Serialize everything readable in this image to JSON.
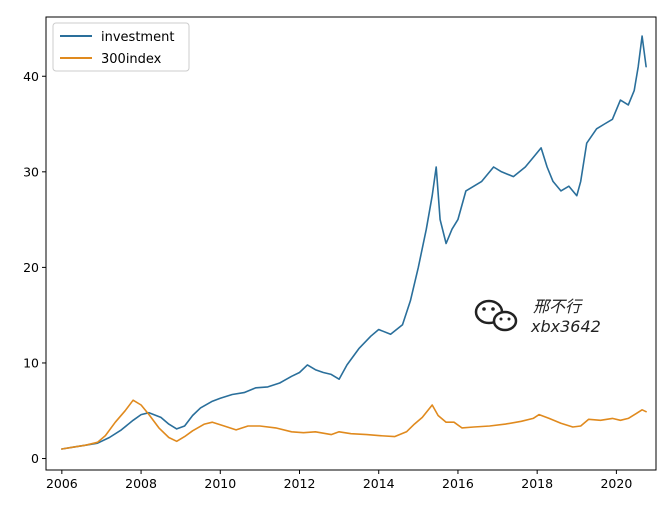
{
  "chart_data": {
    "type": "line",
    "title": "",
    "xlabel": "",
    "ylabel": "",
    "xlim": [
      2005.6,
      2021.0
    ],
    "ylim": [
      -1.2,
      46.2
    ],
    "xticks": [
      2006,
      2008,
      2010,
      2012,
      2014,
      2016,
      2018,
      2020
    ],
    "yticks": [
      0,
      10,
      20,
      30,
      40
    ],
    "grid": false,
    "legend_position": "top-left",
    "series": [
      {
        "name": "investment",
        "color": "#2a6f9b",
        "points": [
          [
            2006.0,
            1.0
          ],
          [
            2006.3,
            1.2
          ],
          [
            2006.6,
            1.4
          ],
          [
            2006.9,
            1.6
          ],
          [
            2007.2,
            2.2
          ],
          [
            2007.5,
            3.0
          ],
          [
            2007.8,
            4.0
          ],
          [
            2008.0,
            4.6
          ],
          [
            2008.2,
            4.8
          ],
          [
            2008.5,
            4.3
          ],
          [
            2008.7,
            3.6
          ],
          [
            2008.9,
            3.1
          ],
          [
            2009.1,
            3.4
          ],
          [
            2009.3,
            4.5
          ],
          [
            2009.5,
            5.3
          ],
          [
            2009.8,
            6.0
          ],
          [
            2010.0,
            6.3
          ],
          [
            2010.3,
            6.7
          ],
          [
            2010.6,
            6.9
          ],
          [
            2010.9,
            7.4
          ],
          [
            2011.2,
            7.5
          ],
          [
            2011.5,
            7.9
          ],
          [
            2011.8,
            8.6
          ],
          [
            2012.0,
            9.0
          ],
          [
            2012.2,
            9.8
          ],
          [
            2012.4,
            9.3
          ],
          [
            2012.6,
            9.0
          ],
          [
            2012.8,
            8.8
          ],
          [
            2013.0,
            8.3
          ],
          [
            2013.2,
            9.8
          ],
          [
            2013.5,
            11.5
          ],
          [
            2013.8,
            12.8
          ],
          [
            2014.0,
            13.5
          ],
          [
            2014.3,
            13.0
          ],
          [
            2014.6,
            14.0
          ],
          [
            2014.8,
            16.5
          ],
          [
            2015.0,
            20.0
          ],
          [
            2015.2,
            24.0
          ],
          [
            2015.35,
            27.5
          ],
          [
            2015.45,
            30.5
          ],
          [
            2015.55,
            25.0
          ],
          [
            2015.7,
            22.5
          ],
          [
            2015.85,
            24.0
          ],
          [
            2016.0,
            25.0
          ],
          [
            2016.2,
            28.0
          ],
          [
            2016.4,
            28.5
          ],
          [
            2016.6,
            29.0
          ],
          [
            2016.9,
            30.5
          ],
          [
            2017.1,
            30.0
          ],
          [
            2017.4,
            29.5
          ],
          [
            2017.7,
            30.5
          ],
          [
            2017.9,
            31.5
          ],
          [
            2018.1,
            32.5
          ],
          [
            2018.25,
            30.5
          ],
          [
            2018.4,
            29.0
          ],
          [
            2018.6,
            28.0
          ],
          [
            2018.8,
            28.5
          ],
          [
            2019.0,
            27.5
          ],
          [
            2019.1,
            29.0
          ],
          [
            2019.25,
            33.0
          ],
          [
            2019.5,
            34.5
          ],
          [
            2019.7,
            35.0
          ],
          [
            2019.9,
            35.5
          ],
          [
            2020.1,
            37.5
          ],
          [
            2020.3,
            37.0
          ],
          [
            2020.45,
            38.5
          ],
          [
            2020.55,
            41.0
          ],
          [
            2020.65,
            44.2
          ],
          [
            2020.75,
            41.0
          ]
        ]
      },
      {
        "name": "300index",
        "color": "#e08a1e",
        "points": [
          [
            2006.0,
            1.0
          ],
          [
            2006.3,
            1.2
          ],
          [
            2006.6,
            1.4
          ],
          [
            2006.9,
            1.7
          ],
          [
            2007.1,
            2.4
          ],
          [
            2007.35,
            3.8
          ],
          [
            2007.6,
            5.0
          ],
          [
            2007.8,
            6.1
          ],
          [
            2008.0,
            5.6
          ],
          [
            2008.2,
            4.6
          ],
          [
            2008.45,
            3.2
          ],
          [
            2008.7,
            2.2
          ],
          [
            2008.9,
            1.8
          ],
          [
            2009.1,
            2.3
          ],
          [
            2009.3,
            2.9
          ],
          [
            2009.6,
            3.6
          ],
          [
            2009.8,
            3.8
          ],
          [
            2010.1,
            3.4
          ],
          [
            2010.4,
            3.0
          ],
          [
            2010.7,
            3.4
          ],
          [
            2011.0,
            3.4
          ],
          [
            2011.4,
            3.2
          ],
          [
            2011.8,
            2.8
          ],
          [
            2012.1,
            2.7
          ],
          [
            2012.4,
            2.8
          ],
          [
            2012.8,
            2.5
          ],
          [
            2013.0,
            2.8
          ],
          [
            2013.3,
            2.6
          ],
          [
            2013.7,
            2.5
          ],
          [
            2014.0,
            2.4
          ],
          [
            2014.4,
            2.3
          ],
          [
            2014.7,
            2.8
          ],
          [
            2014.9,
            3.6
          ],
          [
            2015.1,
            4.3
          ],
          [
            2015.35,
            5.6
          ],
          [
            2015.5,
            4.5
          ],
          [
            2015.7,
            3.8
          ],
          [
            2015.9,
            3.8
          ],
          [
            2016.1,
            3.2
          ],
          [
            2016.4,
            3.3
          ],
          [
            2016.8,
            3.4
          ],
          [
            2017.2,
            3.6
          ],
          [
            2017.6,
            3.9
          ],
          [
            2017.9,
            4.2
          ],
          [
            2018.05,
            4.6
          ],
          [
            2018.3,
            4.2
          ],
          [
            2018.6,
            3.7
          ],
          [
            2018.9,
            3.3
          ],
          [
            2019.1,
            3.4
          ],
          [
            2019.3,
            4.1
          ],
          [
            2019.6,
            4.0
          ],
          [
            2019.9,
            4.2
          ],
          [
            2020.1,
            4.0
          ],
          [
            2020.3,
            4.2
          ],
          [
            2020.5,
            4.7
          ],
          [
            2020.65,
            5.1
          ],
          [
            2020.75,
            4.9
          ]
        ]
      }
    ]
  },
  "watermark": {
    "name_text": "邢不行",
    "id_text": "xbx3642",
    "icon": "wechat-icon"
  }
}
